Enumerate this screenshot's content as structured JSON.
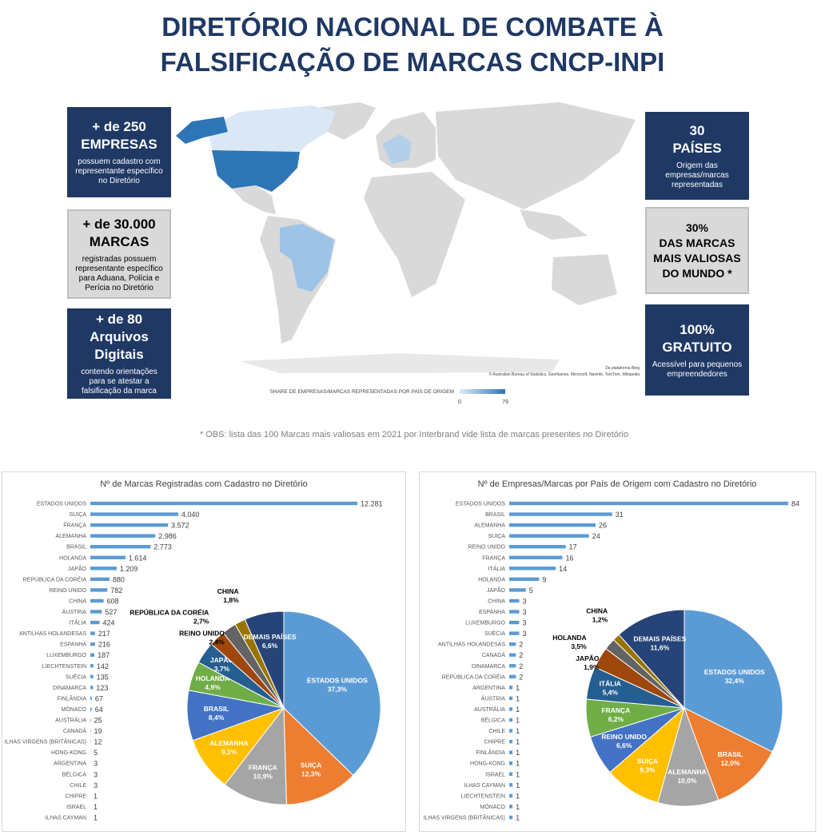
{
  "header": {
    "title": [
      "DIRETÓRIO NACIONAL DE COMBATE À",
      "FALSIFICAÇÃO DE MARCAS CNCP-INPI"
    ]
  },
  "highlights": {
    "left": [
      {
        "headline": [
          "+ de 250",
          "EMPRESAS"
        ],
        "text": "possuem cadastro com representante específico no Diretório"
      },
      {
        "headline": [
          "+ de 30.000",
          "MARCAS"
        ],
        "text": "registradas possuem representante específico para Aduana, Polícia e Perícia no Diretório"
      },
      {
        "headline": [
          "+ de 80",
          "Arquivos Digitais"
        ],
        "text": "contendo orientações para se atestar a falsificação da marca"
      }
    ],
    "right": [
      {
        "headline": [
          "30",
          "PAÍSES"
        ],
        "text": "Origem das empresas/marcas representadas"
      },
      {
        "headline": [
          "30%",
          "DAS MARCAS MAIS VALIOSAS DO MUNDO *"
        ]
      },
      {
        "headline": [
          "100%",
          "GRATUITO"
        ],
        "text": "Acessível para pequenos empreendedores"
      }
    ]
  },
  "map": {
    "legend_title": "SHARE DE EMPRESAS/MARCAS REPRESENTADAS POR PAÍS DE ORIGEM",
    "legend_min": 0,
    "legend_max": 79,
    "credit": "Da plataforma Bing",
    "attribution": "© Australian Bureau of Statistics, GeoNames, Microsoft, Navinfo, TomTom, Wikipedia"
  },
  "note": "* OBS: lista das 100 Marcas mais valiosas em 2021 por Interbrand vide lista de marcas presentes no Diretório",
  "chart_data": [
    {
      "type": "bar",
      "title": "Nº de Marcas Registradas com Cadastro no Diretório",
      "color": "#5b9bd5",
      "categories": [
        "ESTADOS UNIDOS",
        "SUIÇA",
        "FRANÇA",
        "ALEMANHA",
        "BRASIL",
        "HOLANDA",
        "JAPÃO",
        "REPÚBLICA DA CORÉIA",
        "REINO UNIDO",
        "CHINA",
        "ÁUSTRIA",
        "ITÁLIA",
        "ANTILHAS HOLANDESAS",
        "ESPANHA",
        "LUXEMBURGO",
        "LIECHTENSTEIN",
        "SUÉCIA",
        "DINAMARCA",
        "FINLÂNDIA",
        "MÔNACO",
        "AUSTRÁLIA",
        "CANADÁ",
        "ILHAS VIRGENS (BRITÂNICAS)",
        "HONG-KONG",
        "ARGENTINA",
        "BÉLGICA",
        "CHILE",
        "CHIPRE",
        "ISRAEL",
        "ILHAS CAYMAN"
      ],
      "values": [
        12281,
        4040,
        3572,
        2986,
        2773,
        1614,
        1209,
        880,
        782,
        608,
        527,
        424,
        217,
        216,
        187,
        142,
        135,
        123,
        67,
        64,
        25,
        19,
        12,
        5,
        3,
        3,
        3,
        1,
        1,
        1
      ],
      "value_labels": [
        "12.281",
        "4.040",
        "3.572",
        "2.986",
        "2.773",
        "1.614",
        "1.209",
        "880",
        "782",
        "608",
        "527",
        "424",
        "217",
        "216",
        "187",
        "142",
        "135",
        "123",
        "67",
        "64",
        "25",
        "19",
        "12",
        "5",
        "3",
        "3",
        "3",
        "1",
        "1",
        "1"
      ]
    },
    {
      "type": "pie",
      "categories": [
        "ESTADOS UNIDOS",
        "SUIÇA",
        "FRANÇA",
        "ALEMANHA",
        "BRASIL",
        "HOLANDA",
        "JAPÃO",
        "REPÚBLICA DA CORÉIA",
        "REINO UNIDO",
        "CHINA",
        "DEMAIS PAÍSES"
      ],
      "values": [
        37.3,
        12.3,
        10.9,
        9.1,
        8.4,
        4.9,
        3.7,
        2.7,
        2.4,
        1.8,
        6.6
      ],
      "value_labels": [
        "37,3%",
        "12,3%",
        "10,9%",
        "9,1%",
        "8,4%",
        "4,9%",
        "3,7%",
        "2,7%",
        "2,4%",
        "1,8%",
        "6,6%"
      ],
      "colors": [
        "#5b9bd5",
        "#ed7d31",
        "#a5a5a5",
        "#ffc000",
        "#4472c4",
        "#70ad47",
        "#255e91",
        "#9e480e",
        "#636363",
        "#997300",
        "#264478"
      ]
    },
    {
      "type": "bar",
      "title": "Nº de Empresas/Marcas por País de Origem com Cadastro no Diretório",
      "color": "#5b9bd5",
      "categories": [
        "ESTADOS UNIDOS",
        "BRASIL",
        "ALEMANHA",
        "SUIÇA",
        "REINO UNIDO",
        "FRANÇA",
        "ITÁLIA",
        "HOLANDA",
        "JAPÃO",
        "CHINA",
        "ESPANHA",
        "LUXEMBURGO",
        "SUÉCIA",
        "ANTILHAS HOLANDESAS",
        "CANADÁ",
        "DINAMARCA",
        "REPÚBLICA DA CORÉIA",
        "ARGENTINA",
        "ÁUSTRIA",
        "AUSTRÁLIA",
        "BÉLGICA",
        "CHILE",
        "CHIPRE",
        "FINLÂNDIA",
        "HONG-KONG",
        "ISRAEL",
        "ILHAS CAYMAN",
        "LIECHTENSTEIN",
        "MÔNACO",
        "ILHAS VIRGENS (BRITÂNICAS)"
      ],
      "values": [
        84,
        31,
        26,
        24,
        17,
        16,
        14,
        9,
        5,
        3,
        3,
        3,
        3,
        2,
        2,
        2,
        2,
        1,
        1,
        1,
        1,
        1,
        1,
        1,
        1,
        1,
        1,
        1,
        1,
        1
      ]
    },
    {
      "type": "pie",
      "categories": [
        "ESTADOS UNIDOS",
        "BRASIL",
        "ALEMANHA",
        "SUIÇA",
        "REINO UNIDO",
        "FRANÇA",
        "ITÁLIA",
        "HOLANDA",
        "JAPÃO",
        "CHINA",
        "DEMAIS PAÍSES"
      ],
      "values": [
        32.4,
        12.0,
        10.0,
        9.3,
        6.6,
        6.2,
        5.4,
        3.5,
        1.9,
        1.2,
        11.6
      ],
      "value_labels": [
        "32,4%",
        "12,0%",
        "10,0%",
        "9,3%",
        "6,6%",
        "6,2%",
        "5,4%",
        "3,5%",
        "1,9%",
        "1,2%",
        "11,6%"
      ],
      "colors": [
        "#5b9bd5",
        "#ed7d31",
        "#a5a5a5",
        "#ffc000",
        "#4472c4",
        "#70ad47",
        "#255e91",
        "#9e480e",
        "#636363",
        "#997300",
        "#264478"
      ]
    }
  ]
}
